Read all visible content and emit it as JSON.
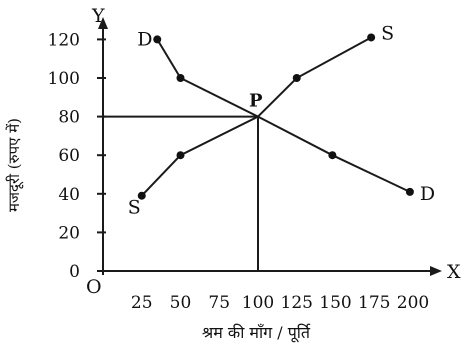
{
  "chart_data": {
    "type": "line",
    "title": "",
    "xlabel": "श्रम की माँग / पूर्ति",
    "ylabel": "मजदूरी (रुपए में)",
    "x_axis_letter": "X",
    "y_axis_letter": "Y",
    "origin_label": "O",
    "xlim": [
      0,
      225
    ],
    "ylim": [
      0,
      130
    ],
    "x_ticks": [
      25,
      50,
      75,
      100,
      125,
      150,
      175,
      200
    ],
    "y_ticks": [
      0,
      20,
      40,
      60,
      80,
      100,
      120
    ],
    "grid": false,
    "series": [
      {
        "curve": "demand",
        "start_label": "D",
        "end_label": "D",
        "points": [
          [
            35,
            120
          ],
          [
            50,
            100
          ],
          [
            100,
            80
          ],
          [
            148,
            60
          ],
          [
            198,
            41
          ]
        ]
      },
      {
        "curve": "supply",
        "start_label": "S",
        "end_label": "S",
        "points": [
          [
            25,
            39
          ],
          [
            50,
            60
          ],
          [
            100,
            80
          ],
          [
            125,
            100
          ],
          [
            173,
            121
          ]
        ]
      }
    ],
    "equilibrium": {
      "label": "P",
      "x": 100,
      "y": 80
    }
  }
}
